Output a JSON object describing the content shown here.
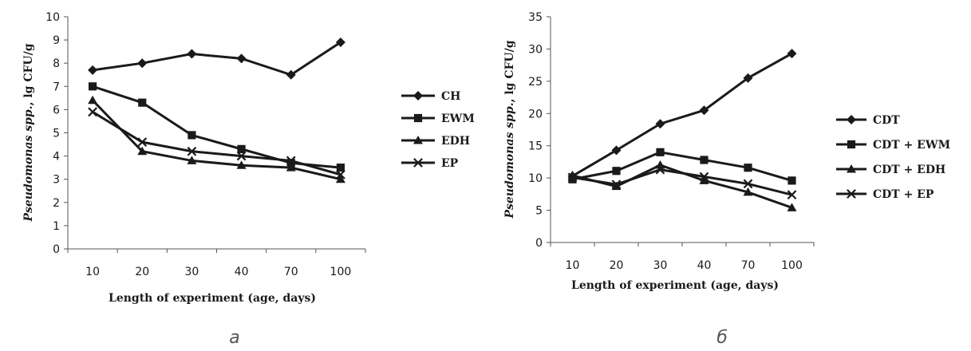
{
  "chart_data": [
    {
      "type": "line",
      "panel_label": "а",
      "categories": [
        "10",
        "20",
        "30",
        "40",
        "70",
        "100"
      ],
      "xlabel": "Length of experiment (age, days)",
      "ylabel_italic": "Pseudomonas spp.",
      "ylabel_rest": ", lg CFU/g",
      "ylim": [
        0,
        10
      ],
      "yticks": [
        "0",
        "1",
        "2",
        "3",
        "4",
        "5",
        "6",
        "7",
        "8",
        "9",
        "10"
      ],
      "legend_position": "right",
      "series": [
        {
          "name": "CH",
          "marker": "diamond",
          "values": [
            7.7,
            8.0,
            8.4,
            8.2,
            7.5,
            8.9
          ]
        },
        {
          "name": "EWM",
          "marker": "square",
          "values": [
            7.0,
            6.3,
            4.9,
            4.3,
            3.7,
            3.5
          ]
        },
        {
          "name": "EDH",
          "marker": "triangle",
          "values": [
            6.4,
            4.2,
            3.8,
            3.6,
            3.5,
            3.0
          ]
        },
        {
          "name": "EP",
          "marker": "x",
          "values": [
            5.9,
            4.6,
            4.2,
            4.0,
            3.8,
            3.2
          ]
        }
      ]
    },
    {
      "type": "line",
      "panel_label": "б",
      "categories": [
        "10",
        "20",
        "30",
        "40",
        "70",
        "100"
      ],
      "xlabel": "Length of experiment (age, days)",
      "ylabel_italic": "Pseudomonas spp.",
      "ylabel_rest": ", lg CFU/g",
      "ylim": [
        0,
        35
      ],
      "yticks": [
        "0",
        "5",
        "10",
        "15",
        "20",
        "25",
        "30",
        "35"
      ],
      "legend_position": "right",
      "series": [
        {
          "name": "CDT",
          "marker": "diamond",
          "values": [
            10.3,
            14.3,
            18.4,
            20.5,
            25.5,
            29.3
          ]
        },
        {
          "name": "CDT + EWM",
          "marker": "square",
          "values": [
            9.8,
            11.1,
            14.0,
            12.8,
            11.6,
            9.6
          ]
        },
        {
          "name": "CDT + EDH",
          "marker": "triangle",
          "values": [
            10.4,
            8.7,
            12.0,
            9.6,
            7.8,
            5.4
          ]
        },
        {
          "name": "CDT + EP",
          "marker": "x",
          "values": [
            10.1,
            9.0,
            11.3,
            10.2,
            9.1,
            7.4
          ]
        }
      ]
    }
  ]
}
